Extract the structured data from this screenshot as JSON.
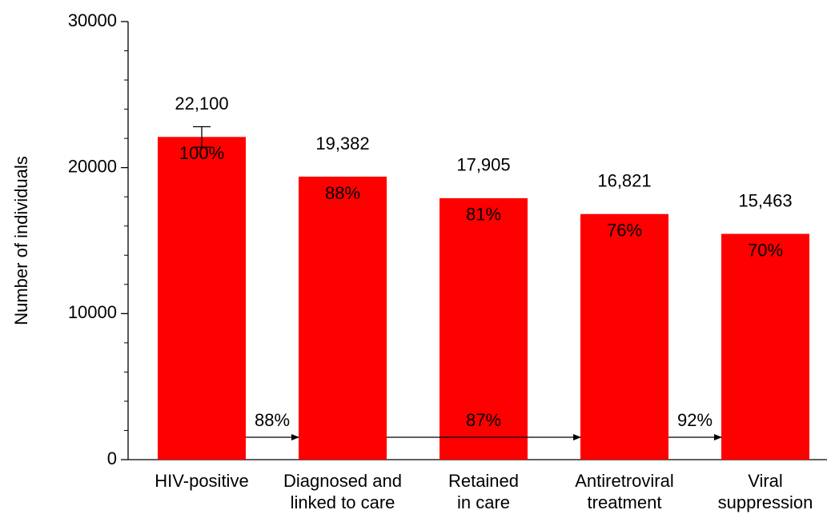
{
  "chart_data": {
    "type": "bar",
    "ylabel": "Number of individuals",
    "categories": [
      [
        "HIV-positive"
      ],
      [
        "Diagnosed and",
        "linked to care"
      ],
      [
        "Retained",
        "in care"
      ],
      [
        "Antiretroviral",
        "treatment"
      ],
      [
        "Viral",
        "suppression"
      ]
    ],
    "values": [
      22100,
      19382,
      17905,
      16821,
      15463
    ],
    "value_labels": [
      "22,100",
      "19,382",
      "17,905",
      "16,821",
      "15,463"
    ],
    "errors": [
      700,
      null,
      null,
      null,
      null
    ],
    "percent_labels": [
      "100%",
      "88%",
      "81%",
      "76%",
      "70%"
    ],
    "transitions": [
      {
        "from": 0,
        "to": 1,
        "label": "88%"
      },
      {
        "from": 1,
        "to": 3,
        "label": "87%"
      },
      {
        "from": 3,
        "to": 4,
        "label": "92%"
      }
    ],
    "color": "#ff0000",
    "ylim": [
      0,
      30000
    ],
    "yticks": [
      0,
      10000,
      20000,
      30000
    ],
    "yminorticks": [
      2000,
      4000,
      6000,
      8000,
      12000,
      14000,
      16000,
      18000,
      22000,
      24000,
      26000,
      28000
    ]
  }
}
